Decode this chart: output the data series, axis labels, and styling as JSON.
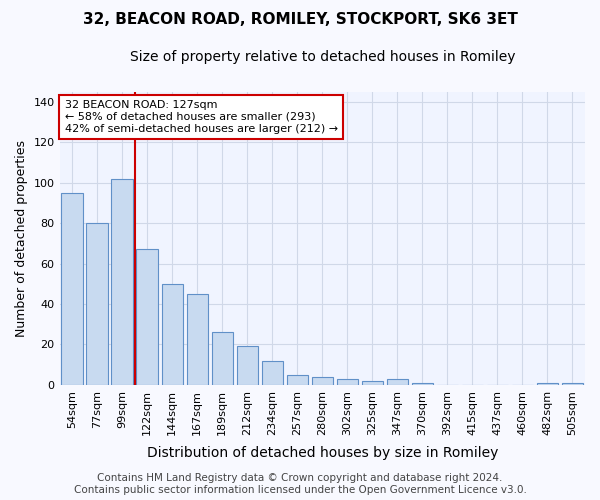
{
  "title": "32, BEACON ROAD, ROMILEY, STOCKPORT, SK6 3ET",
  "subtitle": "Size of property relative to detached houses in Romiley",
  "xlabel": "Distribution of detached houses by size in Romiley",
  "ylabel": "Number of detached properties",
  "categories": [
    "54sqm",
    "77sqm",
    "99sqm",
    "122sqm",
    "144sqm",
    "167sqm",
    "189sqm",
    "212sqm",
    "234sqm",
    "257sqm",
    "280sqm",
    "302sqm",
    "325sqm",
    "347sqm",
    "370sqm",
    "392sqm",
    "415sqm",
    "437sqm",
    "460sqm",
    "482sqm",
    "505sqm"
  ],
  "values": [
    95,
    80,
    102,
    67,
    50,
    45,
    26,
    19,
    12,
    5,
    4,
    3,
    2,
    3,
    1,
    0,
    0,
    0,
    0,
    1,
    1
  ],
  "bar_color": "#c8daf0",
  "bar_edge_color": "#6090c8",
  "vline_index": 3,
  "vline_color": "#cc0000",
  "annotation_text": "32 BEACON ROAD: 127sqm\n← 58% of detached houses are smaller (293)\n42% of semi-detached houses are larger (212) →",
  "footer": "Contains HM Land Registry data © Crown copyright and database right 2024.\nContains public sector information licensed under the Open Government Licence v3.0.",
  "ylim": [
    0,
    145
  ],
  "yticks": [
    0,
    20,
    40,
    60,
    80,
    100,
    120,
    140
  ],
  "bg_color": "#f8f9ff",
  "plot_bg_color": "#f0f4ff",
  "grid_color": "#d0d8e8",
  "title_fontsize": 11,
  "subtitle_fontsize": 10,
  "xlabel_fontsize": 10,
  "ylabel_fontsize": 9,
  "tick_fontsize": 8,
  "annotation_fontsize": 8,
  "footer_fontsize": 7.5
}
